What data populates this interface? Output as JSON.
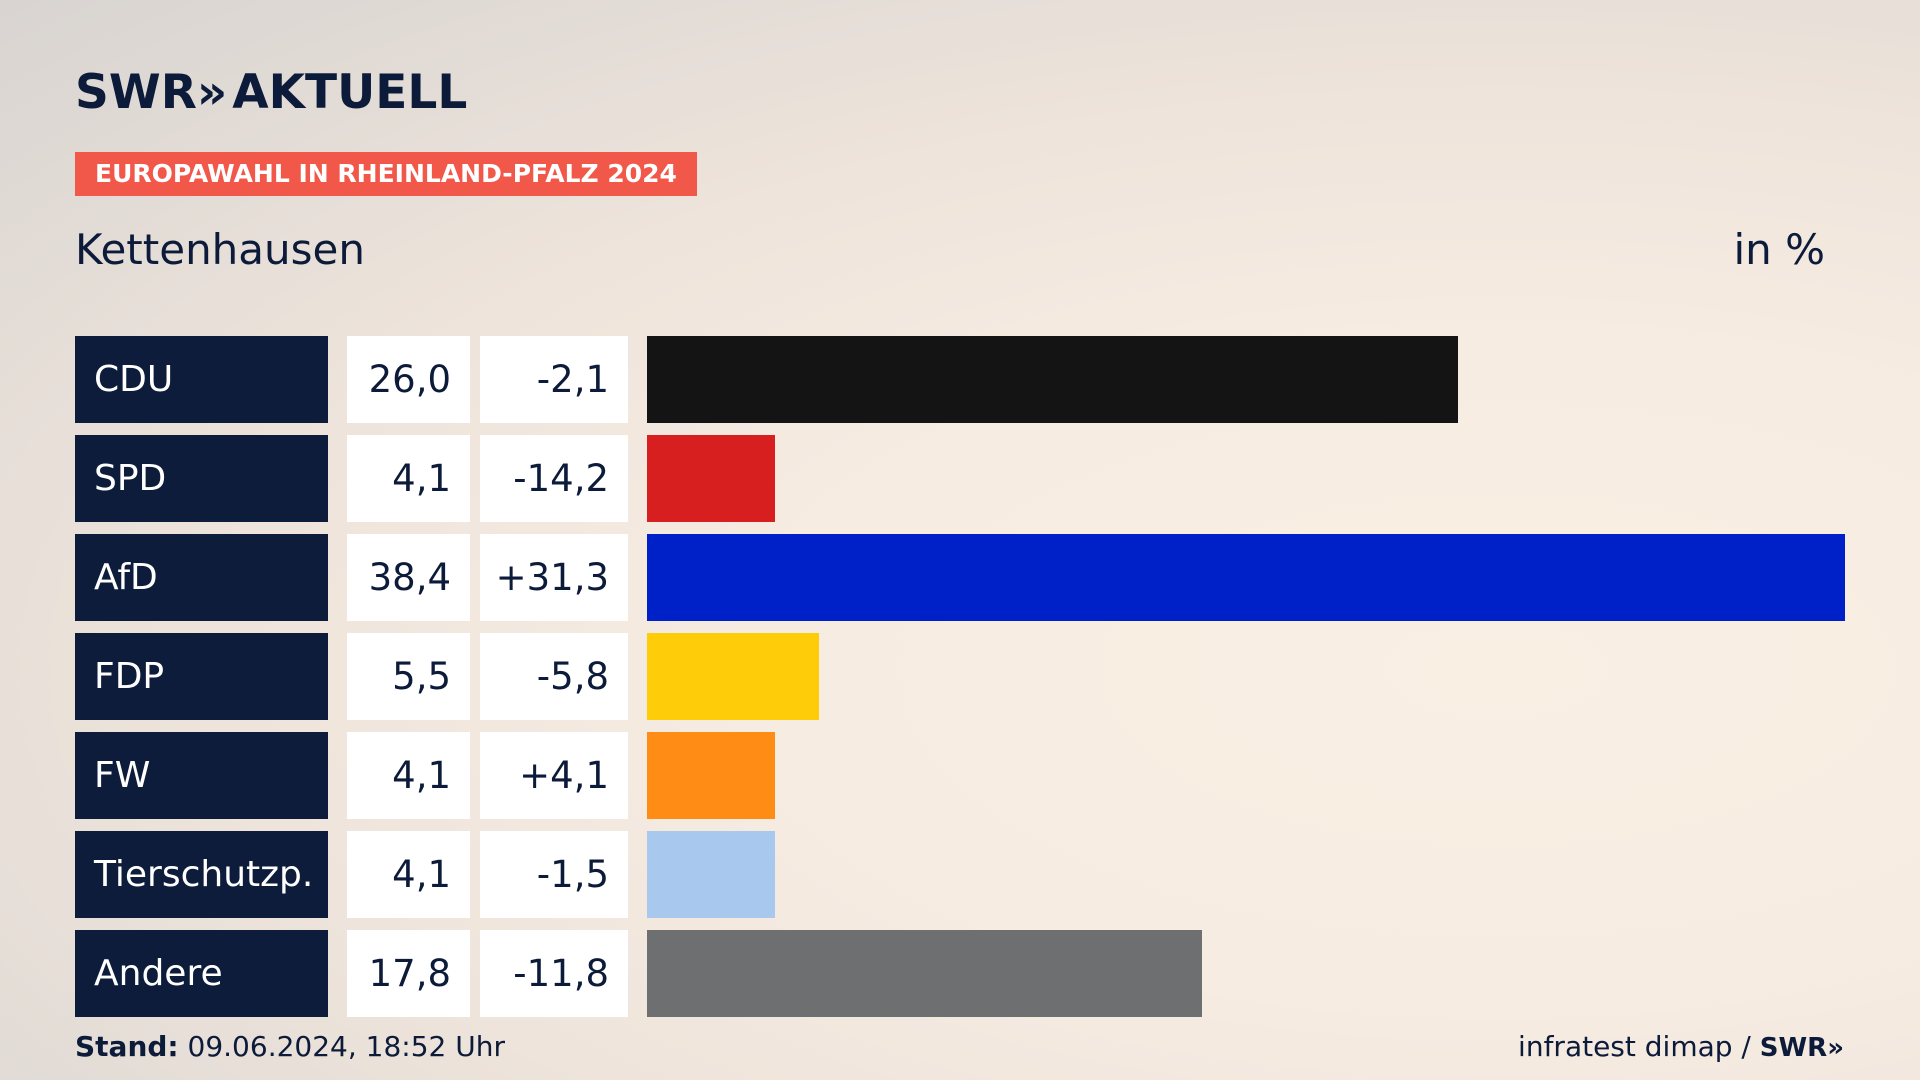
{
  "header": {
    "logo": "SWR",
    "logo_chevrons": "»",
    "logo_suffix": "AKTUELL",
    "badge": "EUROPAWAHL IN RHEINLAND-PFALZ 2024",
    "place": "Kettenhausen",
    "unit": "in %"
  },
  "chart_data": {
    "type": "bar",
    "orientation": "horizontal",
    "categories": [
      "CDU",
      "SPD",
      "AfD",
      "FDP",
      "FW",
      "Tierschutzp.",
      "Andere"
    ],
    "values": [
      26.0,
      4.1,
      38.4,
      5.5,
      4.1,
      4.1,
      17.8
    ],
    "value_labels": [
      "26,0",
      "4,1",
      "38,4",
      "5,5",
      "4,1",
      "4,1",
      "17,8"
    ],
    "diff_labels": [
      "-2,1",
      "-14,2",
      "+31,3",
      "-5,8",
      "+4,1",
      "-1,5",
      "-11,8"
    ],
    "colors": [
      "#141414",
      "#d81f1f",
      "#0021c8",
      "#ffcc0a",
      "#ff8c14",
      "#a8c8ee",
      "#6e6f71"
    ],
    "xlim": [
      0,
      38.4
    ]
  },
  "footer": {
    "stand_label": "Stand:",
    "stand_value": "09.06.2024, 18:52 Uhr",
    "source": "infratest dimap / ",
    "source_logo": "SWR»"
  }
}
